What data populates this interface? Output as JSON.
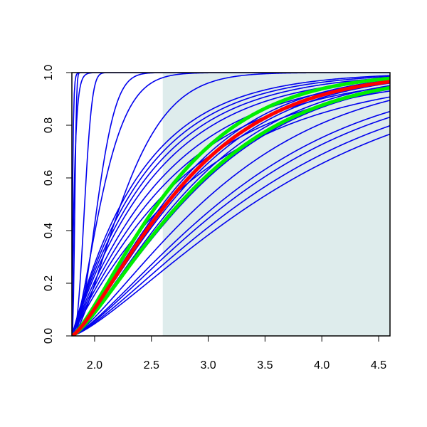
{
  "chart_data": {
    "type": "line",
    "title": "",
    "xlabel": "",
    "ylabel": "",
    "xlim": [
      1.8,
      4.6
    ],
    "ylim": [
      0,
      1
    ],
    "x_ticks": [
      2.0,
      2.5,
      3.0,
      3.5,
      4.0,
      4.5
    ],
    "x_tick_labels": [
      "2.0",
      "2.5",
      "3.0",
      "3.5",
      "4.0",
      "4.5"
    ],
    "y_ticks": [
      0.0,
      0.2,
      0.4,
      0.6,
      0.8,
      1.0
    ],
    "y_tick_labels": [
      "0.0",
      "0.2",
      "0.4",
      "0.6",
      "0.8",
      "1.0"
    ],
    "grid": false,
    "legend": "none",
    "shaded_region": {
      "x_start": 2.6,
      "x_end": 4.6,
      "color": "#deecec"
    },
    "colors": {
      "blue": "#0000ee",
      "red": "#ff0000",
      "green": "#00ee00",
      "axis": "#000000"
    },
    "x_origin": 1.8,
    "series": [
      {
        "color": "blue",
        "style": "thin",
        "rate": 120
      },
      {
        "color": "blue",
        "style": "thin",
        "rate": 40
      },
      {
        "color": "blue",
        "style": "thin",
        "k": 2.5,
        "lambda": 0.03
      },
      {
        "color": "blue",
        "style": "thin",
        "k": 2.5,
        "lambda": 0.13
      },
      {
        "color": "blue",
        "style": "thin",
        "k": 2.0,
        "lambda": 0.27
      },
      {
        "color": "blue",
        "style": "thin",
        "k": 1.5,
        "lambda": 0.32
      },
      {
        "color": "blue",
        "style": "thin",
        "k": 1.5,
        "lambda": 0.55
      },
      {
        "color": "blue",
        "style": "thin",
        "rate": 0.85
      },
      {
        "color": "blue",
        "style": "thin",
        "rate": 0.95
      },
      {
        "color": "blue",
        "style": "thin",
        "rate": 1.05
      },
      {
        "color": "blue",
        "style": "thin",
        "rate": 1.16
      },
      {
        "color": "blue",
        "style": "thin",
        "rate": 1.3
      },
      {
        "color": "blue",
        "style": "thin",
        "rate": 1.4
      },
      {
        "color": "blue",
        "style": "thin",
        "rate": 1.5
      },
      {
        "color": "blue",
        "style": "thin",
        "rate": 1.6
      },
      {
        "color": "blue",
        "style": "thin",
        "k": 1.3,
        "lambda": 1.5
      },
      {
        "color": "blue",
        "style": "thin",
        "k": 1.3,
        "lambda": 1.7
      },
      {
        "color": "blue",
        "style": "thin",
        "k": 1.3,
        "lambda": 1.8
      },
      {
        "color": "blue",
        "style": "thin",
        "k": 1.3,
        "lambda": 1.95
      },
      {
        "color": "blue",
        "style": "thin",
        "k": 1.3,
        "lambda": 2.1
      },
      {
        "color": "blue",
        "style": "thin",
        "k": 1.3,
        "lambda": 1.2
      },
      {
        "color": "blue",
        "style": "thin",
        "k": 1.3,
        "lambda": 1.28
      },
      {
        "color": "green",
        "style": "thick",
        "k": 1.3,
        "lambda": 1.0
      },
      {
        "color": "green",
        "style": "thick",
        "k": 1.3,
        "lambda": 1.25
      },
      {
        "color": "red",
        "style": "thick",
        "k": 1.3,
        "lambda": 1.1
      },
      {
        "color": "blue",
        "style": "thin",
        "k": 1.3,
        "lambda": 1.06
      },
      {
        "color": "blue",
        "style": "thin",
        "k": 1.3,
        "lambda": 1.14
      }
    ]
  }
}
